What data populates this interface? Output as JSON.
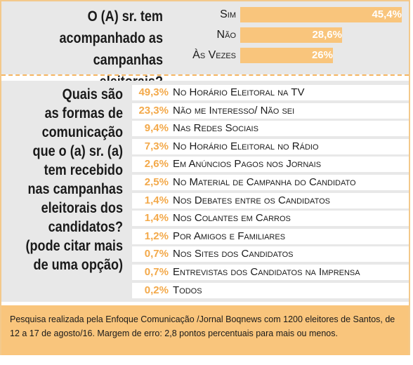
{
  "chart_data": [
    {
      "type": "bar",
      "title": "O (A) sr. tem acompanhado as campanhas eleitorais?",
      "categories": [
        "Sim",
        "Não",
        "Às Vezes"
      ],
      "values": [
        45.4,
        28.6,
        26
      ],
      "value_labels": [
        "45,4%",
        "28,6%",
        "26%"
      ],
      "xlim": [
        0,
        45.4
      ]
    },
    {
      "type": "table",
      "title": "Quais são as formas de comunicação que o (a) sr. (a) tem recebido nas campanhas eleitorais dos candidatos? (pode citar mais de uma opção)",
      "categories": [
        "No Horário Eleitoral na TV",
        "Não me Interesso/ Não sei",
        "Nas Redes Sociais",
        "No Horário Eleitoral no Rádio",
        "Em Anúncios Pagos nos Jornais",
        "No Material de Campanha do Candidato",
        "Nos Debates entre os Candidatos",
        "Nos Colantes em Carros",
        "Por Amigos e Familiares",
        "Nos Sites dos Candidatos",
        "Entrevistas dos Candidatos na Imprensa",
        "Todos"
      ],
      "values": [
        49.3,
        23.3,
        9.4,
        7.3,
        2.6,
        2.5,
        1.4,
        1.4,
        1.2,
        0.7,
        0.7,
        0.2
      ],
      "value_labels": [
        "49,3%",
        "23,3%",
        "9,4%",
        "7,3%",
        "2,6%",
        "2,5%",
        "1,4%",
        "1,4%",
        "1,2%",
        "0,7%",
        "0,7%",
        "0,2%"
      ]
    }
  ],
  "q1_lines": [
    "O (A) sr. tem",
    "acompanhado as",
    "campanhas eleitorais?"
  ],
  "q2_lines": [
    "Quais são",
    "as formas de",
    "comunicação",
    "que o (a) sr. (a)",
    "tem recebido",
    "nas campanhas",
    "eleitorais dos",
    "candidatos?",
    "(pode citar mais",
    "de uma opção)"
  ],
  "footnote": "Pesquisa realizada pela Enfoque Comunicação /Jornal Boqnews com 1200 eleitores de Santos, de 12 a 17 de agosto/16.  Margem de erro: 2,8 pontos percentuais para mais ou menos.",
  "colors": {
    "accent": "#f9c57c",
    "accent_text": "#f3a94a",
    "panel": "#e8e8e8",
    "ink": "#1a1a1a"
  }
}
